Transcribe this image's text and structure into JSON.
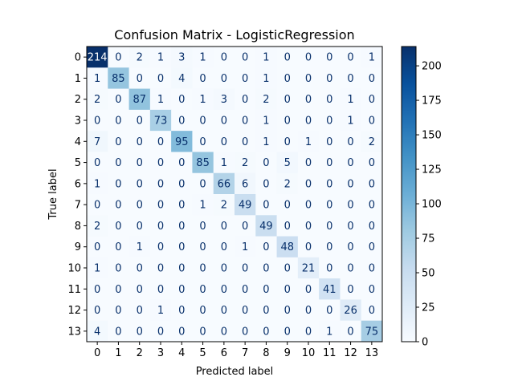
{
  "chart_data": {
    "type": "heatmap",
    "title": "Confusion Matrix - LogisticRegression",
    "xlabel": "Predicted label",
    "ylabel": "True label",
    "x_categories": [
      "0",
      "1",
      "2",
      "3",
      "4",
      "5",
      "6",
      "7",
      "8",
      "9",
      "10",
      "11",
      "12",
      "13"
    ],
    "y_categories": [
      "0",
      "1",
      "2",
      "3",
      "4",
      "5",
      "6",
      "7",
      "8",
      "9",
      "10",
      "11",
      "12",
      "13"
    ],
    "matrix": [
      [
        214,
        0,
        2,
        1,
        3,
        1,
        0,
        0,
        1,
        0,
        0,
        0,
        0,
        1
      ],
      [
        1,
        85,
        0,
        0,
        4,
        0,
        0,
        0,
        1,
        0,
        0,
        0,
        0,
        0
      ],
      [
        2,
        0,
        87,
        1,
        0,
        1,
        3,
        0,
        2,
        0,
        0,
        0,
        1,
        0
      ],
      [
        0,
        0,
        0,
        73,
        0,
        0,
        0,
        0,
        1,
        0,
        0,
        0,
        1,
        0
      ],
      [
        7,
        0,
        0,
        0,
        95,
        0,
        0,
        0,
        1,
        0,
        1,
        0,
        0,
        2
      ],
      [
        0,
        0,
        0,
        0,
        0,
        85,
        1,
        2,
        0,
        5,
        0,
        0,
        0,
        0
      ],
      [
        1,
        0,
        0,
        0,
        0,
        0,
        66,
        6,
        0,
        2,
        0,
        0,
        0,
        0
      ],
      [
        0,
        0,
        0,
        0,
        0,
        1,
        2,
        49,
        0,
        0,
        0,
        0,
        0,
        0
      ],
      [
        2,
        0,
        0,
        0,
        0,
        0,
        0,
        0,
        49,
        0,
        0,
        0,
        0,
        0
      ],
      [
        0,
        0,
        1,
        0,
        0,
        0,
        0,
        1,
        0,
        48,
        0,
        0,
        0,
        0
      ],
      [
        1,
        0,
        0,
        0,
        0,
        0,
        0,
        0,
        0,
        0,
        21,
        0,
        0,
        0
      ],
      [
        0,
        0,
        0,
        0,
        0,
        0,
        0,
        0,
        0,
        0,
        0,
        41,
        0,
        0
      ],
      [
        0,
        0,
        0,
        1,
        0,
        0,
        0,
        0,
        0,
        0,
        0,
        0,
        26,
        0
      ],
      [
        4,
        0,
        0,
        0,
        0,
        0,
        0,
        0,
        0,
        0,
        0,
        1,
        0,
        75
      ]
    ],
    "colormap": "Blues",
    "color_range": [
      0,
      214
    ],
    "colorbar_ticks": [
      0,
      25,
      50,
      75,
      100,
      125,
      150,
      175,
      200
    ]
  }
}
